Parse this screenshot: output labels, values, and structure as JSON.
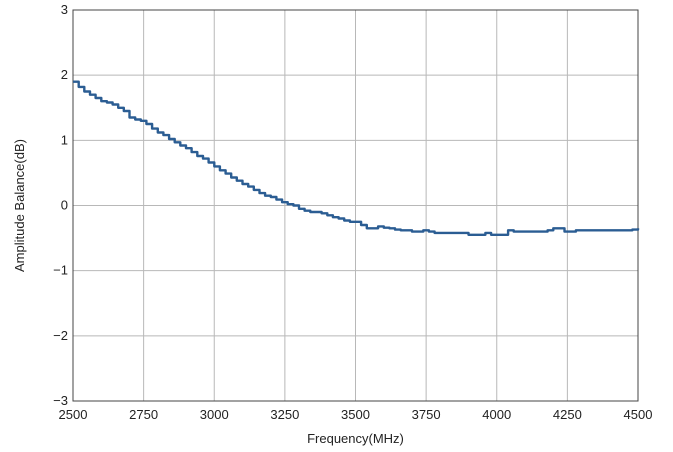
{
  "chart_data": {
    "type": "line",
    "title": "",
    "xlabel": "Frequency(MHz)",
    "ylabel": "Amplitude Balance(dB)",
    "xlim": [
      2500,
      4500
    ],
    "ylim": [
      -3,
      3
    ],
    "xticks": [
      2500,
      2750,
      3000,
      3250,
      3500,
      3750,
      4000,
      4250,
      4500
    ],
    "yticks": [
      -3,
      -2,
      -1,
      0,
      1,
      2,
      3
    ],
    "ytick_labels": [
      "−3",
      "−2",
      "−1",
      "0",
      "1",
      "2",
      "3"
    ],
    "grid": true,
    "legend": "none",
    "series_color": "#2b5d93",
    "series": [
      {
        "x": [
          2500,
          2520,
          2540,
          2560,
          2580,
          2600,
          2620,
          2640,
          2660,
          2680,
          2700,
          2720,
          2740,
          2760,
          2780,
          2800,
          2820,
          2840,
          2860,
          2880,
          2900,
          2920,
          2940,
          2960,
          2980,
          3000,
          3020,
          3040,
          3060,
          3080,
          3100,
          3120,
          3140,
          3160,
          3180,
          3200,
          3220,
          3240,
          3260,
          3280,
          3300,
          3320,
          3340,
          3360,
          3380,
          3400,
          3420,
          3440,
          3460,
          3480,
          3500,
          3520,
          3540,
          3560,
          3580,
          3600,
          3620,
          3640,
          3660,
          3680,
          3700,
          3720,
          3740,
          3760,
          3780,
          3800,
          3820,
          3840,
          3860,
          3880,
          3900,
          3920,
          3940,
          3960,
          3980,
          4000,
          4020,
          4040,
          4060,
          4080,
          4100,
          4120,
          4140,
          4160,
          4180,
          4200,
          4220,
          4240,
          4260,
          4280,
          4300,
          4320,
          4340,
          4360,
          4380,
          4400,
          4420,
          4440,
          4460,
          4480,
          4500
        ],
        "y": [
          1.9,
          1.82,
          1.75,
          1.7,
          1.65,
          1.6,
          1.58,
          1.55,
          1.5,
          1.45,
          1.35,
          1.32,
          1.3,
          1.25,
          1.18,
          1.12,
          1.08,
          1.02,
          0.97,
          0.92,
          0.88,
          0.82,
          0.76,
          0.72,
          0.66,
          0.6,
          0.54,
          0.49,
          0.43,
          0.38,
          0.33,
          0.29,
          0.24,
          0.19,
          0.15,
          0.13,
          0.09,
          0.05,
          0.02,
          0.0,
          -0.05,
          -0.08,
          -0.1,
          -0.1,
          -0.12,
          -0.15,
          -0.18,
          -0.2,
          -0.23,
          -0.25,
          -0.25,
          -0.3,
          -0.35,
          -0.35,
          -0.32,
          -0.34,
          -0.35,
          -0.37,
          -0.38,
          -0.38,
          -0.4,
          -0.4,
          -0.38,
          -0.4,
          -0.42,
          -0.42,
          -0.42,
          -0.42,
          -0.42,
          -0.42,
          -0.45,
          -0.45,
          -0.45,
          -0.42,
          -0.45,
          -0.45,
          -0.45,
          -0.38,
          -0.4,
          -0.4,
          -0.4,
          -0.4,
          -0.4,
          -0.4,
          -0.38,
          -0.35,
          -0.35,
          -0.4,
          -0.4,
          -0.38,
          -0.38,
          -0.38,
          -0.38,
          -0.38,
          -0.38,
          -0.38,
          -0.38,
          -0.38,
          -0.38,
          -0.37,
          -0.35
        ]
      }
    ]
  }
}
